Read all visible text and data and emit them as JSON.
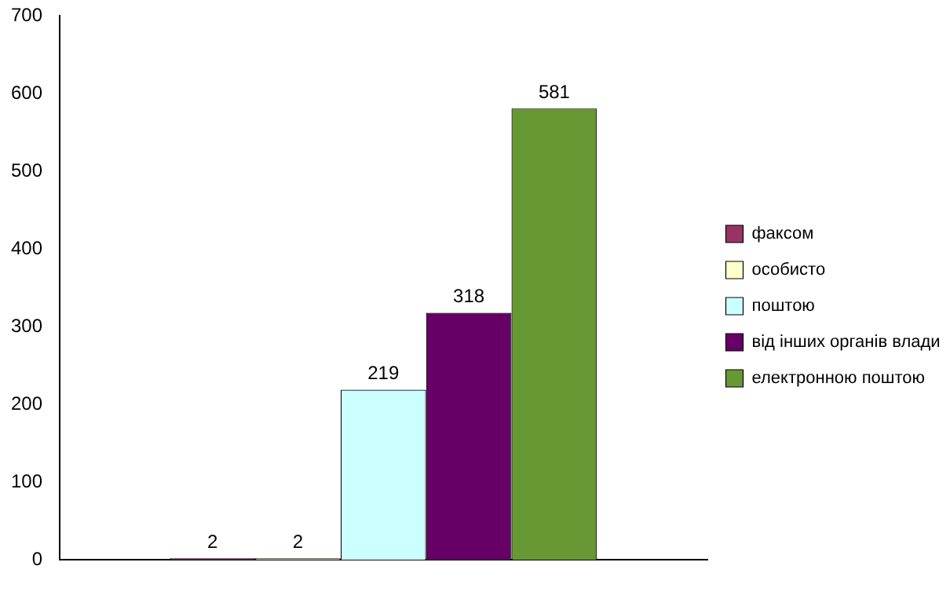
{
  "chart_data": {
    "type": "bar",
    "categories": [
      null
    ],
    "series": [
      {
        "name": "факсом",
        "color": "#993366",
        "values": [
          2
        ]
      },
      {
        "name": "особисто",
        "color": "#ffffcc",
        "values": [
          2
        ]
      },
      {
        "name": "поштою",
        "color": "#ccffff",
        "values": [
          219
        ]
      },
      {
        "name": "від інших органів влади",
        "color": "#660066",
        "values": [
          318
        ]
      },
      {
        "name": "електронною поштою",
        "color": "#669933",
        "values": [
          581
        ]
      }
    ],
    "ylim": [
      0,
      700
    ],
    "yticks": [
      0,
      100,
      200,
      300,
      400,
      500,
      600,
      700
    ],
    "grid": false,
    "legend": "right",
    "data_labels": true
  }
}
